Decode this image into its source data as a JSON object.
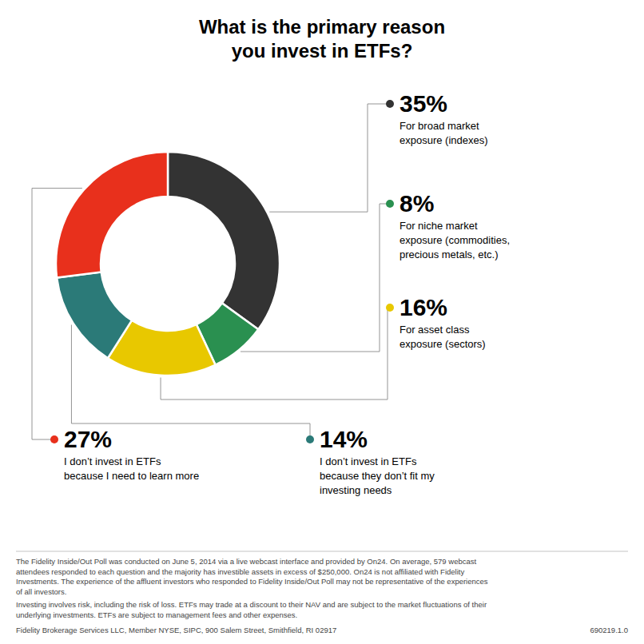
{
  "chart_data": {
    "type": "pie",
    "title": "What is the primary reason\nyou invest in ETFs?",
    "categories": [
      "For broad market\nexposure (indexes)",
      "For niche market\nexposure (commodities,\nprecious metals, etc.)",
      "For asset class\nexposure (sectors)",
      "I don’t invest in ETFs\nbecause they don’t fit my\ninvesting needs",
      "I don’t invest in ETFs\nbecause I need to learn more"
    ],
    "values": [
      35,
      8,
      16,
      14,
      27
    ],
    "value_labels": [
      "35%",
      "8%",
      "16%",
      "14%",
      "27%"
    ],
    "colors": [
      "#333333",
      "#2a9050",
      "#e8c800",
      "#2b7a78",
      "#e8301c"
    ],
    "data_labels": true,
    "annotations": [
      "The Fidelity Inside/Out Poll was conducted on June 5, 2014 via a live webcast interface and provided by On24. On average, 579 webcast\nattendees responded to each question and the majority has investible assets in excess of $250,000. On24 is not affiliated with Fidelity\nInvestments. The experience of the affluent investors who responded to Fidelity Inside/Out Poll may not be representative of the experiences\nof all investors.",
      "Investing involves risk, including the risk of loss. ETFs may trade at a discount to their NAV and are subject to the market fluctuations of their\nunderlying investments. ETFs are subject to management fees and other expenses.",
      "Fidelity Brokerage Services LLC, Member NYSE, SIPC, 900 Salem Street, Smithfield, RI 02917",
      "690219.1.0"
    ]
  }
}
